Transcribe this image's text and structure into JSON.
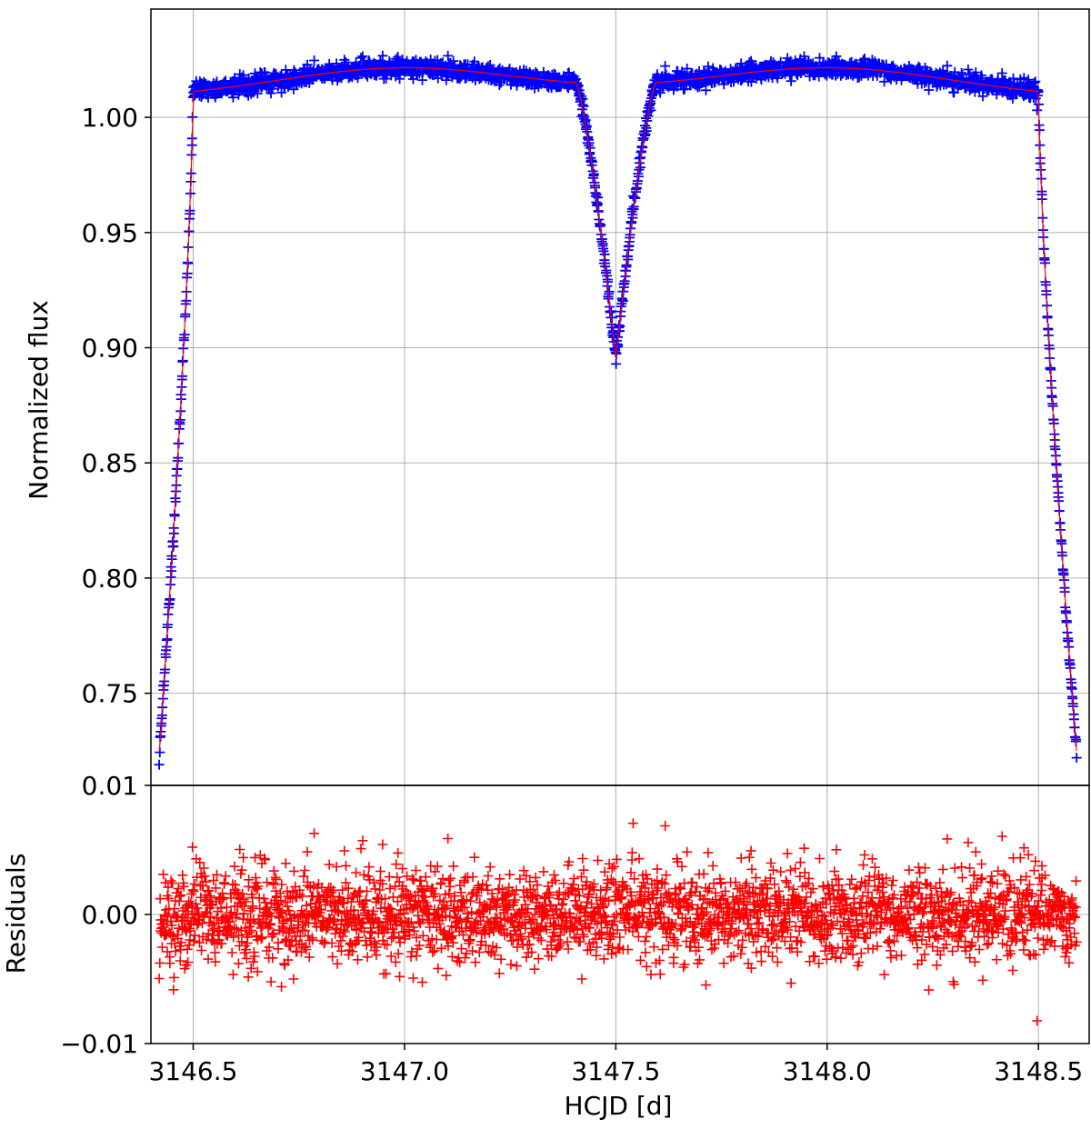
{
  "chart_data": [
    {
      "type": "scatter",
      "panel": "top",
      "xlabel": "",
      "ylabel": "Normalized flux",
      "xlim": [
        3146.4,
        3148.62
      ],
      "ylim": [
        0.71,
        1.047
      ],
      "yticks": [
        0.75,
        0.8,
        0.85,
        0.9,
        0.95,
        1.0
      ],
      "ytick_labels": [
        "0.75",
        "0.80",
        "0.85",
        "0.90",
        "0.95",
        "1.00"
      ],
      "grid": true,
      "marker": "+",
      "colors": {
        "data": "#0000ff",
        "model": "#ff0000"
      },
      "series": [
        {
          "role": "data",
          "x_range": [
            3146.42,
            3148.59
          ],
          "n_points": 2600,
          "primary_eclipse_edges": [
            3146.5,
            3148.5
          ],
          "primary_eclipse_min_flux": 0.725,
          "secondary_eclipse_center": 3147.5,
          "secondary_eclipse_min_flux": 0.895,
          "out_of_eclipse_flux_range": [
            1.008,
            1.022
          ]
        }
      ]
    },
    {
      "type": "scatter",
      "panel": "bottom",
      "xlabel": "HCJD [d]",
      "ylabel": "Residuals",
      "xlim": [
        3146.4,
        3148.62
      ],
      "ylim": [
        -0.01,
        0.01
      ],
      "xticks": [
        3146.5,
        3147.0,
        3147.5,
        3148.0,
        3148.5
      ],
      "xtick_labels": [
        "3146.5",
        "3147.0",
        "3147.5",
        "3148.0",
        "3148.5"
      ],
      "yticks": [
        -0.01,
        0.0,
        0.01
      ],
      "ytick_labels": [
        "−0.01",
        "0.00",
        "0.01"
      ],
      "grid": true,
      "marker": "+",
      "colors": {
        "data": "#ff0000"
      },
      "series": [
        {
          "role": "residuals",
          "x_range": [
            3146.42,
            3148.59
          ],
          "n_points": 2600,
          "scatter_std": 0.0018,
          "value_range": [
            -0.008,
            0.008
          ]
        }
      ]
    }
  ]
}
